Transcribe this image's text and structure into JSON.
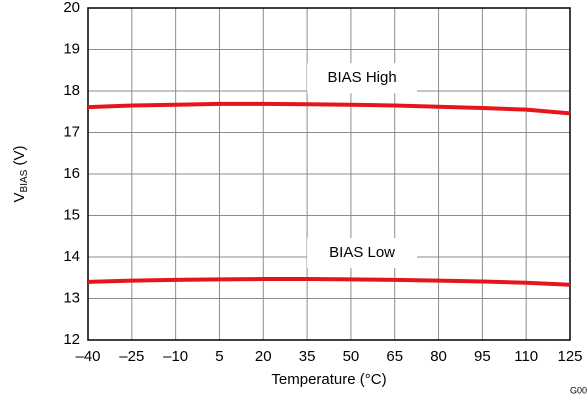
{
  "chart_data": {
    "type": "line",
    "x_label": "Temperature (°C)",
    "y_label": {
      "main": "V",
      "sub": "BIAS",
      "unit": " (V)"
    },
    "figure_id": "G00",
    "x": [
      -40,
      -25,
      -10,
      5,
      20,
      35,
      50,
      65,
      80,
      95,
      110,
      125
    ],
    "series": [
      {
        "name": "BIAS High",
        "color": "#e8141b",
        "values": [
          17.61,
          17.65,
          17.67,
          17.69,
          17.69,
          17.68,
          17.67,
          17.65,
          17.62,
          17.59,
          17.55,
          17.46
        ]
      },
      {
        "name": "BIAS Low",
        "color": "#e8141b",
        "values": [
          13.4,
          13.43,
          13.45,
          13.46,
          13.47,
          13.47,
          13.46,
          13.45,
          13.43,
          13.41,
          13.38,
          13.33
        ]
      }
    ],
    "xlim": [
      -40,
      125
    ],
    "xticks": [
      -40,
      -25,
      -10,
      5,
      20,
      35,
      50,
      65,
      80,
      95,
      110,
      125
    ],
    "ylim": [
      12,
      20
    ],
    "yticks": [
      12,
      13,
      14,
      15,
      16,
      17,
      18,
      19,
      20
    ],
    "grid": true
  }
}
